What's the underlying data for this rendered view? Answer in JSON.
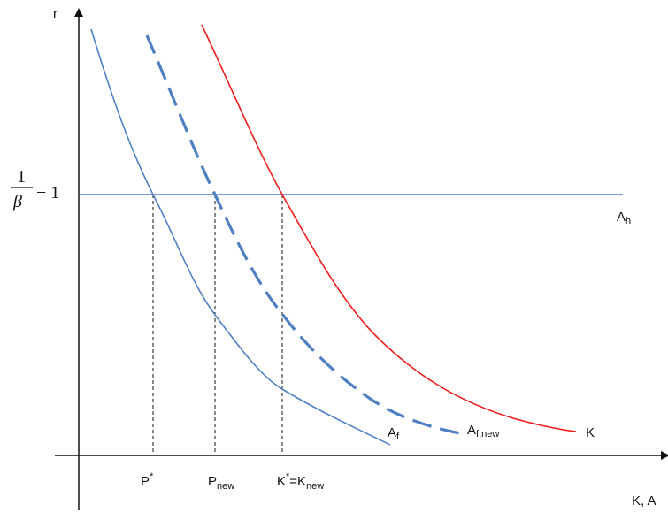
{
  "axes": {
    "y_label": "r",
    "x_label": "K, A"
  },
  "rate_level": {
    "numerator": "1",
    "denominator": "β",
    "minus": "− 1"
  },
  "curves": {
    "a_h": {
      "main": "A",
      "sub": "h",
      "color": "#4f7fc3"
    },
    "a_f": {
      "main": "A",
      "sub": "f",
      "color": "#4f7fc3"
    },
    "a_f_new": {
      "main": "A",
      "sub": "f,new",
      "color": "#4f7fc3"
    },
    "k": {
      "main": "K",
      "color": "#ee1c1c"
    }
  },
  "x_points": {
    "p_star": {
      "main": "P",
      "sup": "*"
    },
    "p_new": {
      "main": "P",
      "sub": "new"
    },
    "k_star": {
      "main": "K",
      "sup": "*",
      "rest": "=K",
      "sub": "new"
    }
  }
}
